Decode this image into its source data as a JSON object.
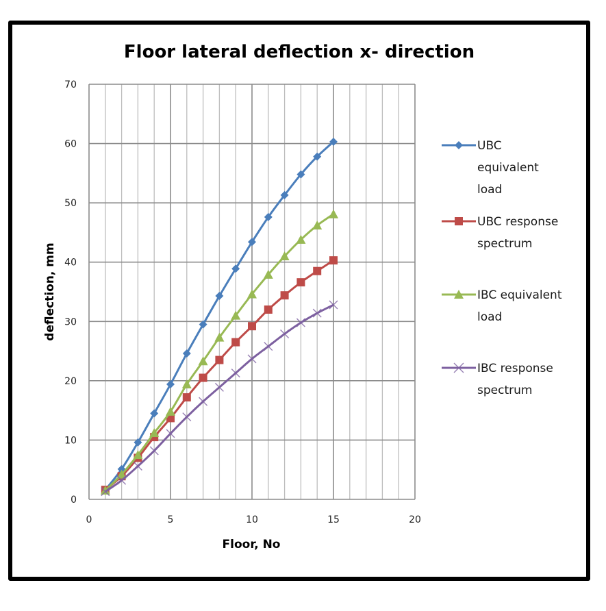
{
  "chart_data": {
    "type": "line",
    "title": "Floor lateral deflection x- direction",
    "xlabel": "Floor, No",
    "ylabel": "deflection, mm",
    "xlim": [
      0,
      20
    ],
    "ylim": [
      0,
      70
    ],
    "x_ticks": [
      0,
      5,
      10,
      15,
      20
    ],
    "y_ticks": [
      0,
      10,
      20,
      30,
      40,
      50,
      60,
      70
    ],
    "grid": true,
    "legend_position": "right",
    "x": [
      1,
      2,
      3,
      4,
      5,
      6,
      7,
      8,
      9,
      10,
      11,
      12,
      13,
      14,
      15
    ],
    "series": [
      {
        "name": "UBC equivalent load",
        "legend_lines": [
          "UBC",
          "equivalent",
          "load"
        ],
        "color": "#4a7ebb",
        "marker": "diamond",
        "values": [
          1.6,
          5.1,
          9.6,
          14.5,
          19.4,
          24.6,
          29.5,
          34.3,
          38.9,
          43.4,
          47.6,
          51.3,
          54.8,
          57.8,
          60.3
        ]
      },
      {
        "name": "UBC response spectrum",
        "legend_lines": [
          "UBC response",
          "spectrum"
        ],
        "color": "#be4b48",
        "marker": "square",
        "values": [
          1.6,
          3.9,
          7.0,
          10.5,
          13.7,
          17.2,
          20.5,
          23.5,
          26.5,
          29.2,
          32.0,
          34.4,
          36.6,
          38.5,
          40.3
        ]
      },
      {
        "name": "IBC equivalent load",
        "legend_lines": [
          "IBC equivalent",
          "load"
        ],
        "color": "#98b954",
        "marker": "triangle",
        "values": [
          1.5,
          4.2,
          7.5,
          11.2,
          14.8,
          19.4,
          23.3,
          27.3,
          31.0,
          34.6,
          37.9,
          41.0,
          43.8,
          46.2,
          48.1
        ]
      },
      {
        "name": "IBC response spectrum",
        "legend_lines": [
          "IBC response",
          "spectrum"
        ],
        "color": "#7d60a0",
        "marker": "x",
        "values": [
          1.3,
          3.2,
          5.6,
          8.2,
          11.1,
          13.9,
          16.5,
          18.9,
          21.3,
          23.7,
          25.8,
          27.9,
          29.8,
          31.4,
          32.8
        ]
      }
    ]
  }
}
